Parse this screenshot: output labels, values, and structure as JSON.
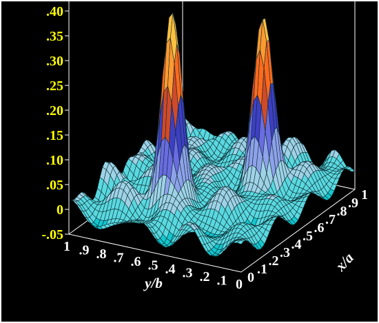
{
  "chart_data": {
    "type": "surface",
    "title": "",
    "xlabel": "x/a",
    "ylabel": "y/b",
    "zlabel": "",
    "x_ticks": [
      "0",
      ".1",
      ".2",
      ".3",
      ".4",
      ".5",
      ".6",
      ".7",
      ".8",
      ".9",
      "1"
    ],
    "y_ticks": [
      "0",
      ".1",
      ".2",
      ".3",
      ".4",
      ".5",
      ".6",
      ".7",
      ".8",
      ".9",
      "1"
    ],
    "z_ticks": [
      "-.05",
      "0",
      ".05",
      ".10",
      ".15",
      ".20",
      ".25",
      ".30",
      ".35",
      ".40"
    ],
    "xlim": [
      0,
      1
    ],
    "ylim": [
      0,
      1
    ],
    "zlim": [
      -0.05,
      0.4
    ],
    "peaks": [
      {
        "x": 0.3,
        "y": 0.6,
        "z": 0.37
      },
      {
        "x": 0.65,
        "y": 0.3,
        "z": 0.32
      }
    ],
    "colors": {
      "background": "#000000",
      "border": "#ffffff",
      "axis_lines": "#ffffff",
      "z_tick_labels": "#ffff00",
      "xy_tick_labels": "#ffffff",
      "mesh_lines": "#0a2a30",
      "colormap": [
        "#14c7cf",
        "#5ad8df",
        "#9fd2e6",
        "#8ea2ea",
        "#6a6ce0",
        "#3e3fc4",
        "#d04a2a",
        "#ff6a1c",
        "#ff9a30",
        "#ffc040",
        "#ffe24a"
      ]
    }
  }
}
